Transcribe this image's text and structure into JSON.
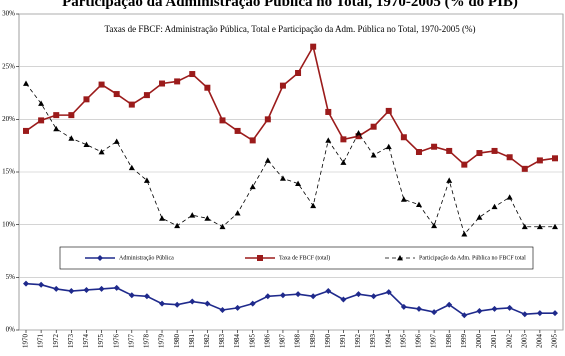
{
  "chart_data": {
    "type": "line",
    "title": "Participação da Administração Pública no Total, 1970-2005 (% do PIB)",
    "subtitle": "Taxas de FBCF: Administração Pública, Total e Participação da Adm. Pública no Total, 1970-2005 (%)",
    "categories": [
      "1970",
      "1971",
      "1972",
      "1973",
      "1974",
      "1975",
      "1976",
      "1977",
      "1978",
      "1979",
      "1980",
      "1981",
      "1982",
      "1983",
      "1984",
      "1985",
      "1986",
      "1987",
      "1988",
      "1989",
      "1990",
      "1991",
      "1992",
      "1993",
      "1994",
      "1995",
      "1996",
      "1997",
      "1998",
      "1999",
      "2000",
      "2001",
      "2002",
      "2003",
      "2004",
      "2005"
    ],
    "series": [
      {
        "name": "Administração Pública",
        "color": "#1f2a8c",
        "marker": "diamond",
        "dashed": false,
        "values": [
          4.4,
          4.3,
          3.9,
          3.7,
          3.8,
          3.9,
          4.0,
          3.3,
          3.2,
          2.5,
          2.4,
          2.7,
          2.5,
          1.9,
          2.1,
          2.5,
          3.2,
          3.3,
          3.4,
          3.2,
          3.7,
          2.9,
          3.4,
          3.2,
          3.6,
          2.2,
          2.0,
          1.7,
          2.4,
          1.4,
          1.8,
          2.0,
          2.1,
          1.5,
          1.6,
          1.6
        ]
      },
      {
        "name": "Taxa de FBCF (total)",
        "color": "#9b1b1b",
        "marker": "square",
        "dashed": false,
        "values": [
          18.9,
          19.9,
          20.4,
          20.4,
          21.9,
          23.3,
          22.4,
          21.4,
          22.3,
          23.4,
          23.6,
          24.3,
          23.0,
          19.9,
          18.9,
          18.0,
          20.0,
          23.2,
          24.4,
          26.9,
          20.7,
          18.1,
          18.4,
          19.3,
          20.8,
          18.3,
          16.9,
          17.4,
          17.0,
          15.7,
          16.8,
          17.0,
          16.4,
          15.3,
          16.1,
          16.3
        ]
      },
      {
        "name": "Participação da Adm. Pública no FBCF total",
        "color": "#000000",
        "marker": "triangle",
        "dashed": true,
        "values": [
          23.4,
          21.5,
          19.1,
          18.2,
          17.6,
          16.9,
          17.9,
          15.4,
          14.2,
          10.6,
          9.9,
          10.9,
          10.6,
          9.8,
          11.1,
          13.6,
          16.1,
          14.4,
          13.9,
          11.8,
          18.0,
          15.9,
          18.7,
          16.6,
          17.4,
          12.4,
          11.9,
          9.9,
          14.2,
          9.1,
          10.7,
          11.7,
          12.6,
          9.8,
          9.8,
          9.8
        ]
      }
    ],
    "ylim": [
      0,
      30
    ],
    "yticks": [
      {
        "value": 0,
        "label": "0%"
      },
      {
        "value": 5,
        "label": "5%"
      },
      {
        "value": 10,
        "label": "10%"
      },
      {
        "value": 15,
        "label": "15%"
      },
      {
        "value": 20,
        "label": "20%"
      },
      {
        "value": 25,
        "label": "25%"
      },
      {
        "value": 30,
        "label": "30%"
      }
    ],
    "grid": true
  }
}
